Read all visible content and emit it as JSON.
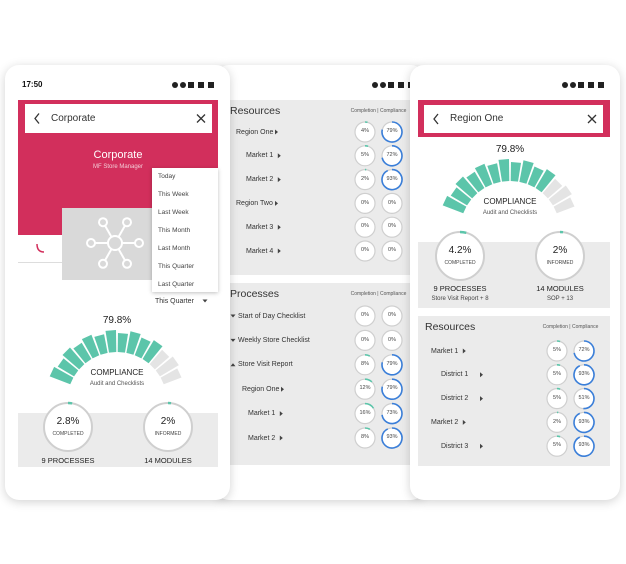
{
  "left": {
    "status_time": "17:50",
    "search": "Corporate",
    "banner": {
      "title": "Corporate",
      "subtitle": "MF Store Manager"
    },
    "dropdown": [
      "Today",
      "This Week",
      "Last Week",
      "This Month",
      "Last Month",
      "This Quarter",
      "Last Quarter"
    ],
    "period": "This Quarter",
    "gauge": {
      "value": "79.8%",
      "title": "COMPLIANCE",
      "subtitle": "Audit and Checklists"
    },
    "stats": [
      {
        "value": "2.8%",
        "label": "COMPLETED",
        "caption": "9 PROCESSES"
      },
      {
        "value": "2%",
        "label": "INFORMED",
        "caption": "14 MODULES"
      }
    ]
  },
  "middle": {
    "sections": [
      {
        "title": "Resources",
        "legend": "Completion | Compliance",
        "rows": [
          {
            "name": "Region One",
            "completion": "4%",
            "compliance": "79%",
            "children": [
              {
                "name": "Market 1",
                "completion": "5%",
                "compliance": "72%"
              },
              {
                "name": "Market 2",
                "completion": "2%",
                "compliance": "93%"
              }
            ]
          },
          {
            "name": "Region Two",
            "completion": "0%",
            "compliance": "0%",
            "children": [
              {
                "name": "Market 3",
                "completion": "0%",
                "compliance": "0%"
              },
              {
                "name": "Market 4",
                "completion": "0%",
                "compliance": "0%"
              }
            ]
          }
        ]
      },
      {
        "title": "Processes",
        "legend": "Completion | Compliance",
        "rows": [
          {
            "name": "Start of Day Checklist",
            "completion": "0%",
            "compliance": "0%"
          },
          {
            "name": "Weekly Store Checklist",
            "completion": "0%",
            "compliance": "0%"
          },
          {
            "name": "Store Visit Report",
            "completion": "8%",
            "compliance": "79%",
            "children": [
              {
                "name": "Region One",
                "completion": "12%",
                "compliance": "79%",
                "children": [
                  {
                    "name": "Market 1",
                    "completion": "16%",
                    "compliance": "73%"
                  },
                  {
                    "name": "Market 2",
                    "completion": "8%",
                    "compliance": "93%"
                  }
                ]
              }
            ]
          }
        ]
      }
    ]
  },
  "right": {
    "search": "Region One",
    "gauge": {
      "value": "79.8%",
      "title": "COMPLIANCE",
      "subtitle": "Audit and Checklists"
    },
    "stats": [
      {
        "value": "4.2%",
        "label": "COMPLETED",
        "caption": "9 PROCESSES",
        "detail": "Store Visit Report + 8"
      },
      {
        "value": "2%",
        "label": "INFORMED",
        "caption": "14 MODULES",
        "detail": "SOP + 13"
      }
    ],
    "section": {
      "title": "Resources",
      "legend": "Completion | Compliance",
      "rows": [
        {
          "name": "Market 1",
          "completion": "5%",
          "compliance": "72%",
          "children": [
            {
              "name": "District 1",
              "completion": "5%",
              "compliance": "93%"
            },
            {
              "name": "District 2",
              "completion": "5%",
              "compliance": "51%"
            }
          ]
        },
        {
          "name": "Market 2",
          "completion": "2%",
          "compliance": "93%",
          "children": [
            {
              "name": "District 3",
              "completion": "5%",
              "compliance": "93%"
            }
          ]
        }
      ]
    }
  }
}
